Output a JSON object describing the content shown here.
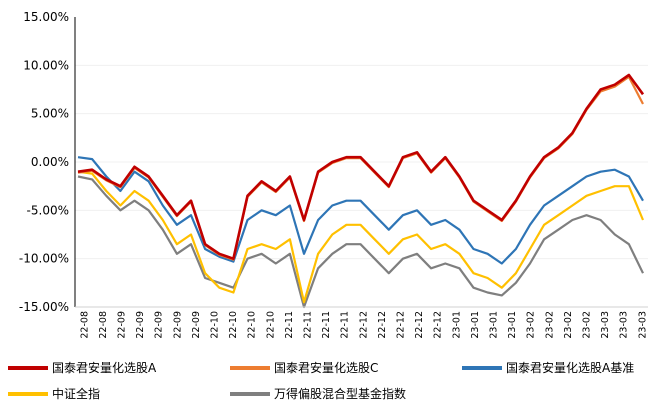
{
  "chart_data": {
    "type": "line",
    "title": "",
    "xlabel": "",
    "ylabel": "",
    "ylim": [
      -15,
      15
    ],
    "y_ticks": [
      "15.00%",
      "10.00%",
      "5.00%",
      "0.00%",
      "-5.00%",
      "-10.00%",
      "-15.00%"
    ],
    "x_tick_labels": [
      "22-08",
      "22-08",
      "22-09",
      "22-09",
      "22-09",
      "22-09",
      "22-09",
      "22-10",
      "22-10",
      "22-10",
      "22-10",
      "22-11",
      "22-11",
      "22-11",
      "22-11",
      "22-12",
      "22-12",
      "22-12",
      "22-12",
      "22-12",
      "23-01",
      "23-01",
      "23-01",
      "23-01",
      "23-02",
      "23-02",
      "23-02",
      "23-02",
      "23-03",
      "23-03",
      "23-03"
    ],
    "legend_position": "bottom",
    "series": [
      {
        "name": "国泰君安量化选股A",
        "color": "#C00000",
        "values": [
          -1.0,
          -0.8,
          -1.8,
          -2.5,
          -0.5,
          -1.5,
          -3.5,
          -5.5,
          -4.0,
          -8.5,
          -9.5,
          -10.0,
          -3.5,
          -2.0,
          -3.0,
          -1.5,
          -6.0,
          -1.0,
          0.0,
          0.5,
          0.5,
          -1.0,
          -2.5,
          0.5,
          1.0,
          -1.0,
          0.5,
          -1.5,
          -4.0,
          -5.0,
          -6.0,
          -4.0,
          -1.5,
          0.5,
          1.5,
          3.0,
          5.5,
          7.5,
          8.0,
          9.0,
          7.0
        ]
      },
      {
        "name": "国泰君安量化选股C",
        "color": "#ED7D31",
        "values": [
          -1.1,
          -0.9,
          -1.9,
          -2.6,
          -0.6,
          -1.6,
          -3.6,
          -5.6,
          -4.1,
          -8.6,
          -9.6,
          -10.1,
          -3.6,
          -2.1,
          -3.1,
          -1.6,
          -6.1,
          -1.1,
          -0.1,
          0.4,
          0.4,
          -1.1,
          -2.6,
          0.4,
          0.9,
          -1.1,
          0.4,
          -1.6,
          -4.1,
          -5.1,
          -6.1,
          -4.1,
          -1.6,
          0.4,
          1.4,
          2.9,
          5.4,
          7.3,
          7.8,
          8.8,
          6.0
        ]
      },
      {
        "name": "国泰君安量化选股A基准",
        "color": "#2E75B6",
        "values": [
          0.5,
          0.3,
          -1.5,
          -3.0,
          -1.0,
          -2.0,
          -4.5,
          -6.5,
          -5.5,
          -9.0,
          -9.8,
          -10.3,
          -6.0,
          -5.0,
          -5.5,
          -4.5,
          -9.5,
          -6.0,
          -4.5,
          -4.0,
          -4.0,
          -5.5,
          -7.0,
          -5.5,
          -5.0,
          -6.5,
          -6.0,
          -7.0,
          -9.0,
          -9.5,
          -10.5,
          -9.0,
          -6.5,
          -4.5,
          -3.5,
          -2.5,
          -1.5,
          -1.0,
          -0.8,
          -1.5,
          -4.0
        ]
      },
      {
        "name": "中证全指",
        "color": "#FFC000",
        "values": [
          -1.0,
          -1.2,
          -3.0,
          -4.5,
          -3.0,
          -4.0,
          -6.0,
          -8.5,
          -7.5,
          -11.5,
          -13.0,
          -13.5,
          -9.0,
          -8.5,
          -9.0,
          -8.0,
          -14.5,
          -9.5,
          -7.5,
          -6.5,
          -6.5,
          -8.0,
          -9.5,
          -8.0,
          -7.5,
          -9.0,
          -8.5,
          -9.5,
          -11.5,
          -12.0,
          -13.0,
          -11.5,
          -9.0,
          -6.5,
          -5.5,
          -4.5,
          -3.5,
          -3.0,
          -2.5,
          -2.5,
          -6.0
        ]
      },
      {
        "name": "万得偏股混合型基金指数",
        "color": "#7F7F7F",
        "values": [
          -1.5,
          -1.8,
          -3.5,
          -5.0,
          -4.0,
          -5.0,
          -7.0,
          -9.5,
          -8.5,
          -12.0,
          -12.5,
          -13.0,
          -10.0,
          -9.5,
          -10.5,
          -9.5,
          -15.0,
          -11.0,
          -9.5,
          -8.5,
          -8.5,
          -10.0,
          -11.5,
          -10.0,
          -9.5,
          -11.0,
          -10.5,
          -11.0,
          -13.0,
          -13.5,
          -13.8,
          -12.5,
          -10.5,
          -8.0,
          -7.0,
          -6.0,
          -5.5,
          -6.0,
          -7.5,
          -8.5,
          -11.5
        ]
      }
    ]
  }
}
